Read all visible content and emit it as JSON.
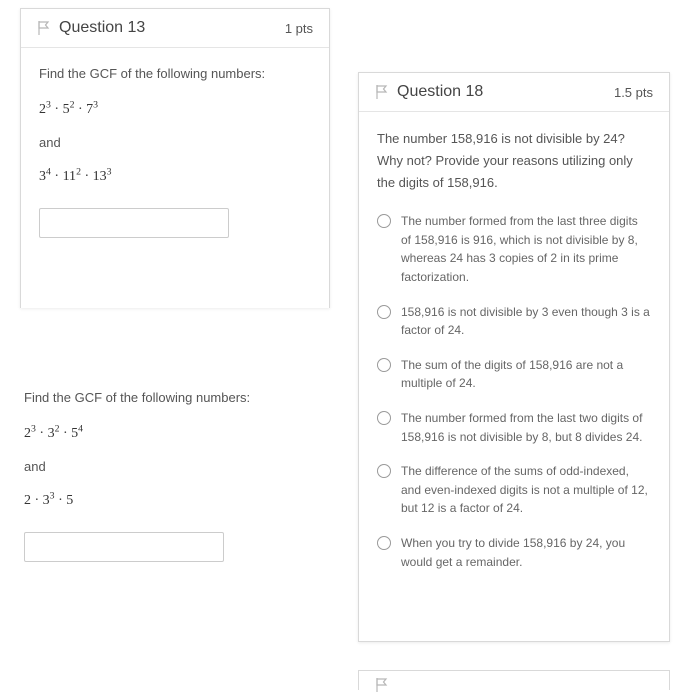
{
  "q13": {
    "title": "Question 13",
    "points": "1 pts",
    "prompt": "Find the GCF of the following numbers:",
    "expr1_html": "2<sup>3</sup> · 5<sup>2</sup> · 7<sup>3</sup>",
    "and": "and",
    "expr2_html": "3<sup>4</sup> · 11<sup>2</sup> · 13<sup>3</sup>"
  },
  "q_mid": {
    "prompt": "Find the GCF of the following numbers:",
    "expr1_html": "2<sup>3</sup> · 3<sup>2</sup> · 5<sup>4</sup>",
    "and": "and",
    "expr2_html": "2 · 3<sup>3</sup> · 5"
  },
  "q18": {
    "title": "Question 18",
    "points": "1.5 pts",
    "intro": "The number 158,916 is not divisible by 24?  Why not?  Provide your reasons utilizing only the digits of 158,916.",
    "options": [
      "The number formed from the last three digits of 158,916 is 916, which is not divisible by 8, whereas 24 has 3 copies of 2 in its prime factorization.",
      "158,916 is not divisible by 3 even though 3 is a factor of 24.",
      "The sum of the digits of 158,916 are not a multiple of 24.",
      "The number formed from the last two digits of 158,916 is not divisible by 8, but 8 divides 24.",
      "The difference of the sums of odd-indexed, and even-indexed digits is not a multiple of 12, but 12 is a factor of 24.",
      "When you try to divide 158,916 by 24, you would get a remainder."
    ]
  },
  "colors": {
    "border": "#d9d9d9",
    "text": "#555555",
    "heading": "#444444",
    "option_text": "#666666",
    "flag_stroke": "#b6b6b6"
  }
}
